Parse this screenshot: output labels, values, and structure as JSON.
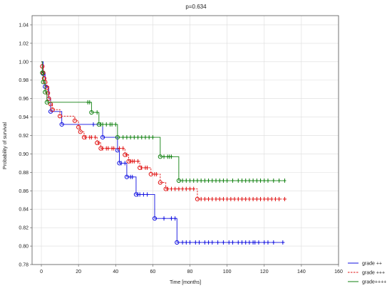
{
  "chart_data": {
    "type": "line",
    "title": "p=0.634",
    "xlabel": "Time [months]",
    "ylabel": "Probability of survival",
    "xlim": [
      -5,
      160
    ],
    "ylim": [
      0.78,
      1.05
    ],
    "xticks": [
      0,
      20,
      40,
      60,
      80,
      100,
      120,
      140,
      160
    ],
    "yticks": [
      0.78,
      0.8,
      0.82,
      0.84,
      0.86,
      0.88,
      0.9,
      0.92,
      0.94,
      0.96,
      0.98,
      1.0,
      1.02,
      1.04
    ],
    "grid": true,
    "legend_position": "bottom-right",
    "series": [
      {
        "name": "grade ++",
        "color": "#1010e0",
        "line_style": "solid",
        "steps": [
          [
            0,
            1.0
          ],
          [
            1,
            0.987
          ],
          [
            2,
            0.973
          ],
          [
            4,
            0.96
          ],
          [
            5,
            0.946
          ],
          [
            11,
            0.932
          ],
          [
            33,
            0.918
          ],
          [
            41,
            0.904
          ],
          [
            42,
            0.89
          ],
          [
            46,
            0.875
          ],
          [
            51,
            0.856
          ],
          [
            61,
            0.83
          ],
          [
            73,
            0.804
          ],
          [
            131,
            0.804
          ]
        ],
        "events": [
          1,
          2,
          4,
          5,
          11,
          33,
          41,
          42,
          46,
          51,
          61,
          73
        ],
        "censored": [
          28,
          43,
          45,
          48,
          49,
          52,
          53,
          55,
          57,
          66,
          70,
          72,
          76,
          78,
          80,
          83,
          85,
          88,
          90,
          92,
          95,
          98,
          101,
          103,
          106,
          108,
          110,
          112,
          114,
          115,
          117,
          120,
          122,
          125,
          130
        ]
      },
      {
        "name": "grade +++",
        "color": "#e01010",
        "line_style": "dashed",
        "steps": [
          [
            0,
            1.0
          ],
          [
            0.5,
            0.995
          ],
          [
            1,
            0.988
          ],
          [
            1.5,
            0.982
          ],
          [
            2,
            0.978
          ],
          [
            3,
            0.972
          ],
          [
            3.5,
            0.966
          ],
          [
            4,
            0.96
          ],
          [
            5,
            0.954
          ],
          [
            6,
            0.948
          ],
          [
            10,
            0.941
          ],
          [
            18,
            0.936
          ],
          [
            20,
            0.929
          ],
          [
            21,
            0.924
          ],
          [
            23,
            0.918
          ],
          [
            30,
            0.912
          ],
          [
            32,
            0.906
          ],
          [
            45,
            0.899
          ],
          [
            47,
            0.892
          ],
          [
            53,
            0.885
          ],
          [
            59,
            0.878
          ],
          [
            64,
            0.869
          ],
          [
            67,
            0.862
          ],
          [
            84,
            0.851
          ],
          [
            132,
            0.851
          ]
        ],
        "events": [
          0.5,
          1,
          1.5,
          2,
          3,
          3.5,
          4,
          5,
          6,
          10,
          18,
          20,
          21,
          23,
          30,
          32,
          45,
          47,
          53,
          59,
          64,
          67,
          84
        ],
        "censored": [
          24,
          26,
          27,
          29,
          31,
          33,
          35,
          36,
          38,
          39,
          42,
          44,
          46,
          48,
          49,
          50,
          52,
          54,
          56,
          57,
          61,
          62,
          68,
          70,
          72,
          74,
          76,
          78,
          80,
          82,
          86,
          88,
          90,
          92,
          94,
          96,
          98,
          100,
          102,
          104,
          106,
          108,
          110,
          112,
          114,
          116,
          118,
          120,
          122,
          124,
          126,
          128,
          131
        ]
      },
      {
        "name": "grade++++",
        "color": "#108010",
        "line_style": "solid",
        "steps": [
          [
            0,
            1.0
          ],
          [
            0.5,
            0.988
          ],
          [
            1,
            0.978
          ],
          [
            2,
            0.967
          ],
          [
            3,
            0.956
          ],
          [
            27,
            0.945
          ],
          [
            31,
            0.932
          ],
          [
            41,
            0.918
          ],
          [
            64,
            0.897
          ],
          [
            74,
            0.871
          ],
          [
            131,
            0.871
          ]
        ],
        "events": [
          0.5,
          1,
          2,
          3,
          27,
          31,
          41,
          64,
          74
        ],
        "censored": [
          25,
          26,
          30,
          32,
          33,
          35,
          37,
          38,
          40,
          44,
          46,
          48,
          50,
          52,
          54,
          56,
          58,
          60,
          66,
          68,
          69,
          70,
          76,
          78,
          80,
          82,
          84,
          86,
          88,
          90,
          92,
          94,
          96,
          98,
          100,
          103,
          106,
          108,
          110,
          112,
          114,
          116,
          118,
          120,
          122,
          125,
          128,
          131
        ]
      }
    ]
  }
}
